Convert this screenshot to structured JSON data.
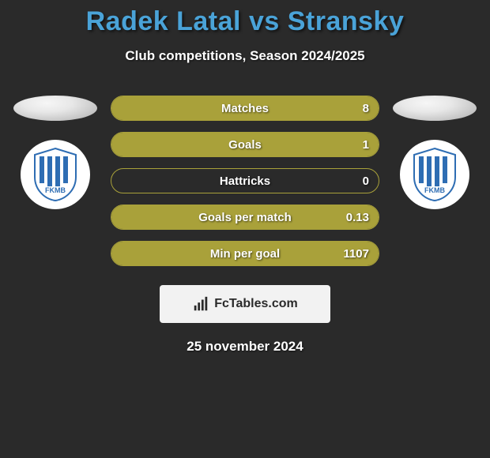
{
  "title_color": "#4aa3d8",
  "player_left": "Radek Latal",
  "vs": "vs",
  "player_right": "Stransky",
  "subtitle": "Club competitions, Season 2024/2025",
  "stats": [
    {
      "label": "Matches",
      "value": "8",
      "fill_pct": 100
    },
    {
      "label": "Goals",
      "value": "1",
      "fill_pct": 100
    },
    {
      "label": "Hattricks",
      "value": "0",
      "fill_pct": 0
    },
    {
      "label": "Goals per match",
      "value": "0.13",
      "fill_pct": 100
    },
    {
      "label": "Min per goal",
      "value": "1107",
      "fill_pct": 100
    }
  ],
  "bar_fill_color": "#a9a13a",
  "bar_border_color": "#a9a13a",
  "club_left_label": "FKMB",
  "club_right_label": "FKMB",
  "shield_stripe_color": "#2e6db3",
  "shield_bg_color": "#ffffff",
  "watermark_text": "FcTables.com",
  "date": "25 november 2024"
}
